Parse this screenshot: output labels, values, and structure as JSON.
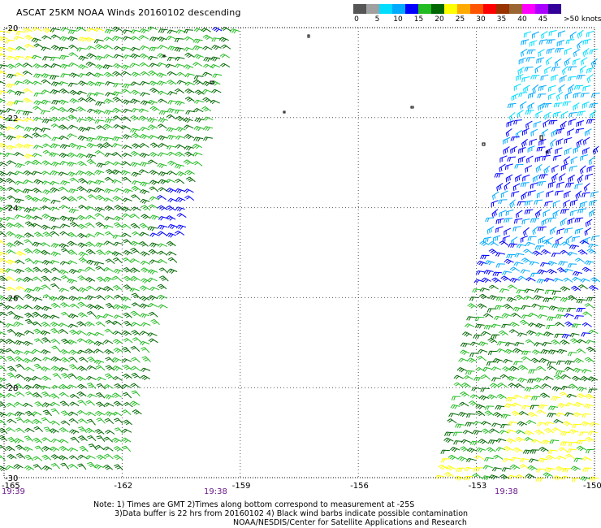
{
  "title": "ASCAT 25KM NOAA Winds 20160102 descending",
  "legend": {
    "colors": [
      "#555555",
      "#a0a0a0",
      "#00ddff",
      "#00aaff",
      "#0000ff",
      "#22bb22",
      "#006600",
      "#ffff00",
      "#ffaa00",
      "#ff5500",
      "#ff0000",
      "#993300",
      "#996633",
      "#ff00ff",
      "#aa00ff",
      "#330099"
    ],
    "labels": [
      "0",
      "5",
      "10",
      "15",
      "20",
      "25",
      "30",
      "35",
      "40",
      "45",
      ">50 knots"
    ]
  },
  "axes": {
    "lat_labels": [
      "-20",
      "-22",
      "-24",
      "-26",
      "-28",
      "-30"
    ],
    "lon_labels": [
      "-165",
      "-162",
      "-159",
      "-156",
      "-153",
      "-150"
    ]
  },
  "swaths": [
    {
      "name": "west-swath",
      "time": "19:39",
      "colors": [
        "green",
        "dark-green",
        "yellow",
        "blue"
      ]
    },
    {
      "name": "central-time",
      "time": "19:38"
    },
    {
      "name": "east-swath",
      "time": "19:38",
      "colors": [
        "cyan",
        "light-blue",
        "blue",
        "green",
        "dark-green",
        "yellow"
      ]
    }
  ],
  "notes": {
    "line1": "Note: 1) Times are GMT 2)Times along bottom correspond to measurement at -25S",
    "line2": "3)Data buffer is 22 hrs from 20160102 4) Black wind barbs indicate possible contamination",
    "line3": "NOAA/NESDIS/Center for Satellite Applications and Research"
  }
}
